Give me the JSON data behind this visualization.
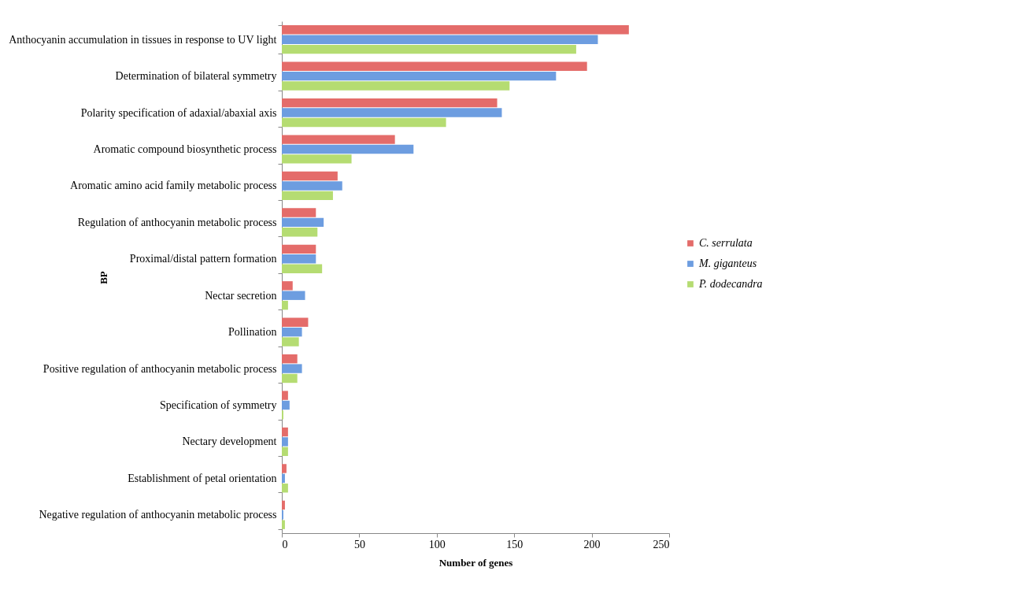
{
  "chart_data": {
    "type": "bar",
    "orientation": "horizontal",
    "xlabel": "Number of genes",
    "ylabel": "BP",
    "categories": [
      "Anthocyanin accumulation in tissues in response to UV light",
      "Determination of bilateral symmetry",
      "Polarity specification of adaxial/abaxial axis",
      "Aromatic compound biosynthetic process",
      "Aromatic amino acid family metabolic process",
      "Regulation of anthocyanin metabolic process",
      "Proximal/distal pattern formation",
      "Nectar secretion",
      "Pollination",
      "Positive regulation of anthocyanin metabolic process",
      "Specification of symmetry",
      "Nectary development",
      "Establishment of petal orientation",
      "Negative regulation of anthocyanin metabolic process"
    ],
    "series": [
      {
        "name": "C. serrulata",
        "color": "#e46c6a",
        "values": [
          224,
          197,
          139,
          73,
          36,
          22,
          22,
          7,
          17,
          10,
          4,
          4,
          3,
          2
        ]
      },
      {
        "name": "M. giganteus",
        "color": "#6d9de0",
        "values": [
          204,
          177,
          142,
          85,
          39,
          27,
          22,
          15,
          13,
          13,
          5,
          4,
          2,
          1
        ]
      },
      {
        "name": "P. dodecandra",
        "color": "#b5dc72",
        "values": [
          190,
          147,
          106,
          45,
          33,
          23,
          26,
          4,
          11,
          10,
          1,
          4,
          4,
          2
        ]
      }
    ],
    "xlim": [
      0,
      250
    ],
    "xticks": [
      0,
      50,
      100,
      150,
      200,
      250
    ],
    "legend": "right",
    "grid": false
  }
}
